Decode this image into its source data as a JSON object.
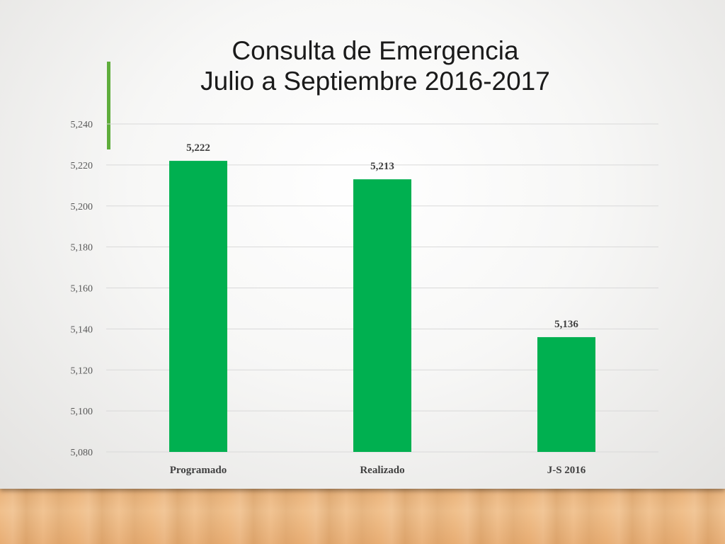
{
  "slide": {
    "title_line1": "Consulta de Emergencia",
    "title_line2": "Julio a Septiembre 2016-2017"
  },
  "colors": {
    "bar": "#00b050",
    "accent": "#5fad3c",
    "text": "#1a1a1a",
    "axis_text": "#595959",
    "gridline": "#d9d9d9"
  },
  "chart_data": {
    "type": "bar",
    "title": "Consulta de Emergencia Julio a Septiembre 2016-2017",
    "categories": [
      "Programado",
      "Realizado",
      "J-S 2016"
    ],
    "values": [
      5222,
      5213,
      5136
    ],
    "value_labels": [
      "5,222",
      "5,213",
      "5,136"
    ],
    "ylim": [
      5080,
      5240
    ],
    "yticks": [
      5080,
      5100,
      5120,
      5140,
      5160,
      5180,
      5200,
      5220,
      5240
    ],
    "ytick_labels": [
      "5,080",
      "5,100",
      "5,120",
      "5,140",
      "5,160",
      "5,180",
      "5,200",
      "5,220",
      "5,240"
    ],
    "xlabel": "",
    "ylabel": "",
    "grid": true,
    "legend": "none"
  }
}
